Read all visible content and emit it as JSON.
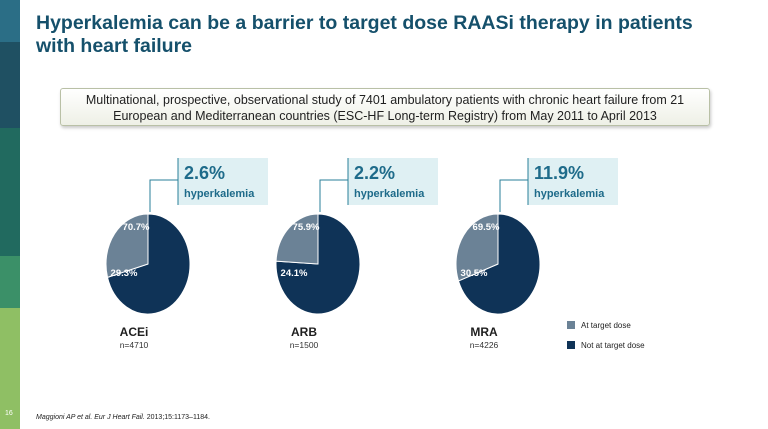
{
  "title": "Hyperkalemia can be a barrier to target dose RAASi therapy in patients with heart failure",
  "study_box": {
    "line1": "Multinational, prospective, observational study of 7401 ambulatory patients with chronic heart failure from 21",
    "line2": "European and Mediterranean countries (ESC-HF Long-term Registry) from May 2011 to April 2013"
  },
  "slide_number": "16",
  "footnote": {
    "citation": "Maggioni AP et al. Eur J Heart Fail.",
    "detail": " 2013;15:1173–1184."
  },
  "colors": {
    "at_target": "#6b8296",
    "not_at_target": "#0f3357",
    "callout_bg": "#dff0f3",
    "callout_text": "#1e6b8a"
  },
  "chart_data": {
    "type": "pie",
    "legend": [
      "At target dose",
      "Not at target dose"
    ],
    "legend_position": "bottom-right",
    "pies": [
      {
        "category": "ACEi",
        "n": "n=4710",
        "at_target": 29.3,
        "not_at_target": 70.7,
        "at_label": "29.3%",
        "not_label": "70.7%",
        "hyper_pct": "2.6%",
        "hyper_label": "hyperkalemia"
      },
      {
        "category": "ARB",
        "n": "n=1500",
        "at_target": 24.1,
        "not_at_target": 75.9,
        "at_label": "24.1%",
        "not_label": "75.9%",
        "hyper_pct": "2.2%",
        "hyper_label": "hyperkalemia"
      },
      {
        "category": "MRA",
        "n": "n=4226",
        "at_target": 30.5,
        "not_at_target": 69.5,
        "at_label": "30.5%",
        "not_label": "69.5%",
        "hyper_pct": "11.9%",
        "hyper_label": "hyperkalemia"
      }
    ]
  }
}
